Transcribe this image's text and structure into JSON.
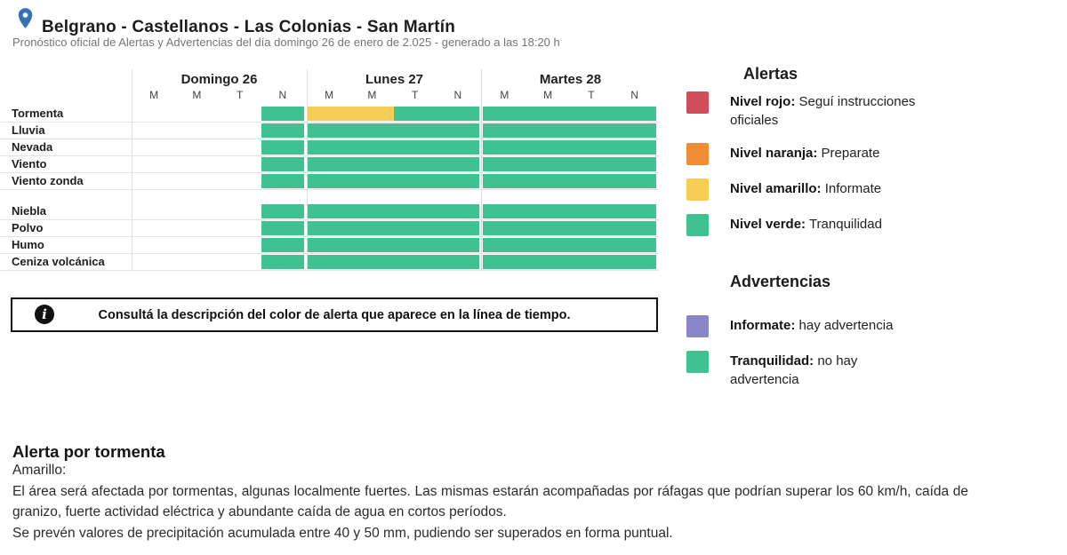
{
  "header": {
    "title": "Belgrano - Castellanos - Las Colonias - San Martín",
    "subtitle": "Pronóstico oficial de Alertas y Advertencias del día domingo 26 de enero de 2.025 - generado a las 18:20 h"
  },
  "colors": {
    "green": "#3FC192",
    "yellow": "#F6CE55",
    "orange": "#EE8D35",
    "red": "#D04D5C",
    "purple": "#8B86C8",
    "pin_blue": "#3573B9"
  },
  "timeline": {
    "days": [
      {
        "label": "Domingo 26",
        "periods": [
          "M",
          "M",
          "T",
          "N"
        ]
      },
      {
        "label": "Lunes 27",
        "periods": [
          "M",
          "M",
          "T",
          "N"
        ]
      },
      {
        "label": "Martes 28",
        "periods": [
          "M",
          "M",
          "T",
          "N"
        ]
      }
    ],
    "rows": [
      {
        "label": "Tormenta",
        "group": 0,
        "cells": [
          null,
          null,
          null,
          "green",
          "yellow",
          "yellow",
          "green",
          "green",
          "green",
          "green",
          "green",
          "green"
        ]
      },
      {
        "label": "Lluvia",
        "group": 0,
        "cells": [
          null,
          null,
          null,
          "green",
          "green",
          "green",
          "green",
          "green",
          "green",
          "green",
          "green",
          "green"
        ]
      },
      {
        "label": "Nevada",
        "group": 0,
        "cells": [
          null,
          null,
          null,
          "green",
          "green",
          "green",
          "green",
          "green",
          "green",
          "green",
          "green",
          "green"
        ]
      },
      {
        "label": "Viento",
        "group": 0,
        "cells": [
          null,
          null,
          null,
          "green",
          "green",
          "green",
          "green",
          "green",
          "green",
          "green",
          "green",
          "green"
        ]
      },
      {
        "label": "Viento zonda",
        "group": 0,
        "cells": [
          null,
          null,
          null,
          "green",
          "green",
          "green",
          "green",
          "green",
          "green",
          "green",
          "green",
          "green"
        ]
      },
      {
        "label": "Niebla",
        "group": 1,
        "cells": [
          null,
          null,
          null,
          "green",
          "green",
          "green",
          "green",
          "green",
          "green",
          "green",
          "green",
          "green"
        ]
      },
      {
        "label": "Polvo",
        "group": 1,
        "cells": [
          null,
          null,
          null,
          "green",
          "green",
          "green",
          "green",
          "green",
          "green",
          "green",
          "green",
          "green"
        ]
      },
      {
        "label": "Humo",
        "group": 1,
        "cells": [
          null,
          null,
          null,
          "green",
          "green",
          "green",
          "green",
          "green",
          "green",
          "green",
          "green",
          "green"
        ]
      },
      {
        "label": "Ceniza volcánica",
        "group": 1,
        "cells": [
          null,
          null,
          null,
          "green",
          "green",
          "green",
          "green",
          "green",
          "green",
          "green",
          "green",
          "green"
        ]
      }
    ]
  },
  "info_box": {
    "text": "Consultá la descripción del color de alerta que aparece en la línea de tiempo."
  },
  "legend": {
    "alerts_title": "Alertas",
    "alerts": [
      {
        "color": "red",
        "name": "Nivel rojo:",
        "desc": " Seguí instrucciones oficiales"
      },
      {
        "color": "orange",
        "name": "Nivel naranja:",
        "desc": " Preparate"
      },
      {
        "color": "yellow",
        "name": "Nivel amarillo:",
        "desc": " Informate"
      },
      {
        "color": "green",
        "name": "Nivel verde:",
        "desc": " Tranquilidad"
      }
    ],
    "warnings_title": "Advertencias",
    "warnings": [
      {
        "color": "purple",
        "name": "Informate:",
        "desc": " hay advertencia"
      },
      {
        "color": "green",
        "name": "Tranquilidad:",
        "desc": " no hay advertencia"
      }
    ]
  },
  "detail": {
    "title": "Alerta por tormenta",
    "level": "Amarillo:",
    "paragraph1": "El área será afectada por tormentas, algunas localmente fuertes. Las mismas estarán acompañadas por ráfagas que podrían superar los 60 km/h, caída de granizo, fuerte actividad eléctrica y abundante caída de agua en cortos períodos.",
    "paragraph2": "Se prevén valores de precipitación acumulada entre 40 y 50 mm, pudiendo ser superados en forma puntual."
  }
}
